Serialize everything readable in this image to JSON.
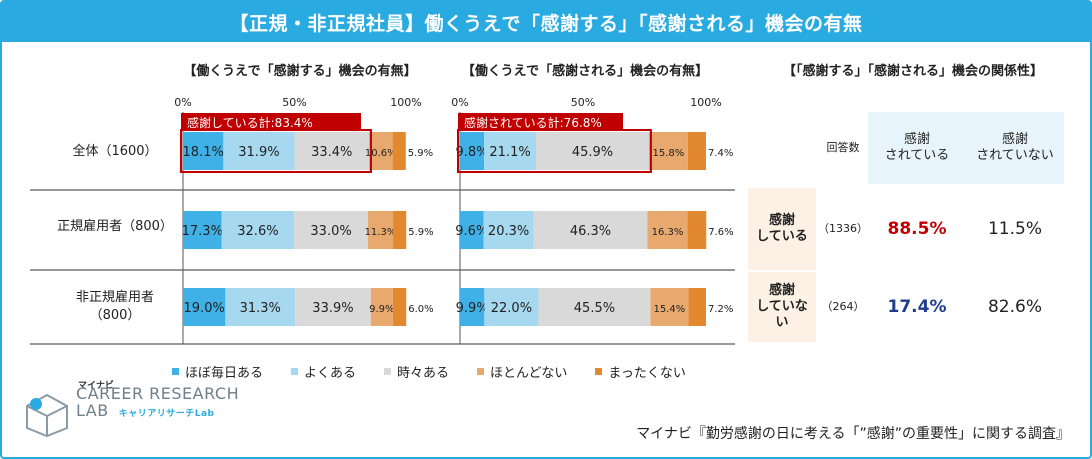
{
  "header": {
    "title": "【正規・非正規社員】働くうえで「感謝する」「感謝される」機会の有無"
  },
  "panels": {
    "left_title": "【働くうえで「感謝する」機会の有無】",
    "mid_title": "【働くうえで「感謝される」機会の有無】",
    "right_title": "【「感謝する」「感謝される」機会の関係性】"
  },
  "row_labels": [
    "全体（1600）",
    "正規雇用者（800）",
    "非正規雇用者\n（800）"
  ],
  "colors": {
    "c1": "#3fb1e6",
    "c2": "#a6d8ef",
    "c3": "#d9d9d9",
    "c4": "#e8a96e",
    "c5": "#e2892f",
    "accent": "#29aae1",
    "red": "#c00000",
    "navy": "#1f3d8a"
  },
  "chart_data": [
    {
      "type": "bar",
      "orientation": "horizontal-stacked",
      "title": "【働くうえで「感謝する」機会の有無】",
      "categories": [
        "全体（1600）",
        "正規雇用者（800）",
        "非正規雇用者（800）"
      ],
      "x_ticks": [
        "0%",
        "50%",
        "100%"
      ],
      "xlim": [
        0,
        100
      ],
      "series": [
        {
          "name": "ほぼ毎日ある",
          "values": [
            18.1,
            17.3,
            19.0
          ],
          "labels": [
            "18.1%",
            "17.3%",
            "19.0%"
          ]
        },
        {
          "name": "よくある",
          "values": [
            31.9,
            32.6,
            31.3
          ],
          "labels": [
            "31.9%",
            "32.6%",
            "31.3%"
          ]
        },
        {
          "name": "時々ある",
          "values": [
            33.4,
            33.0,
            33.9
          ],
          "labels": [
            "33.4%",
            "33.0%",
            "33.9%"
          ]
        },
        {
          "name": "ほとんどない",
          "values": [
            10.6,
            11.3,
            9.9
          ],
          "labels": [
            "10.6%",
            "11.3%",
            "9.9%"
          ]
        },
        {
          "name": "まったくない",
          "values": [
            5.9,
            5.9,
            6.0
          ],
          "labels": [
            "5.9%",
            "5.9%",
            "6.0%"
          ]
        }
      ],
      "annotation": "感謝している計:83.4%"
    },
    {
      "type": "bar",
      "orientation": "horizontal-stacked",
      "title": "【働くうえで「感謝される」機会の有無】",
      "categories": [
        "全体（1600）",
        "正規雇用者（800）",
        "非正規雇用者（800）"
      ],
      "x_ticks": [
        "0%",
        "50%",
        "100%"
      ],
      "xlim": [
        0,
        100
      ],
      "series": [
        {
          "name": "ほぼ毎日ある",
          "values": [
            9.8,
            9.6,
            9.9
          ],
          "labels": [
            "9.8%",
            "9.6%",
            "9.9%"
          ]
        },
        {
          "name": "よくある",
          "values": [
            21.1,
            20.3,
            22.0
          ],
          "labels": [
            "21.1%",
            "20.3%",
            "22.0%"
          ]
        },
        {
          "name": "時々ある",
          "values": [
            45.9,
            46.3,
            45.5
          ],
          "labels": [
            "45.9%",
            "46.3%",
            "45.5%"
          ]
        },
        {
          "name": "ほとんどない",
          "values": [
            15.8,
            16.3,
            15.4
          ],
          "labels": [
            "15.8%",
            "16.3%",
            "15.4%"
          ]
        },
        {
          "name": "まったくない",
          "values": [
            7.4,
            7.6,
            7.2
          ],
          "labels": [
            "7.4%",
            "7.6%",
            "7.2%"
          ]
        }
      ],
      "annotation": "感謝されている計:76.8%"
    },
    {
      "type": "table",
      "title": "【「感謝する」「感謝される」機会の関係性】",
      "columns": [
        "回答数",
        "感謝\nされている",
        "感謝\nされていない"
      ],
      "rows": [
        {
          "label": "感謝\nしている",
          "n": "（1336）",
          "values": [
            "88.5%",
            "11.5%"
          ]
        },
        {
          "label": "感謝\nしていな\nい",
          "n": "（264）",
          "values": [
            "17.4%",
            "82.6%"
          ]
        }
      ]
    }
  ],
  "legend": [
    "ほぼ毎日ある",
    "よくある",
    "時々ある",
    "ほとんどない",
    "まったくない"
  ],
  "logo": {
    "kana": "マイナビ",
    "line1": "CAREER RESEARCH",
    "line2": "LAB",
    "sub": "キャリアリサーチLab"
  },
  "source": "マイナビ『勤労感謝の日に考える「”感謝”の重要性」に関する調査』"
}
